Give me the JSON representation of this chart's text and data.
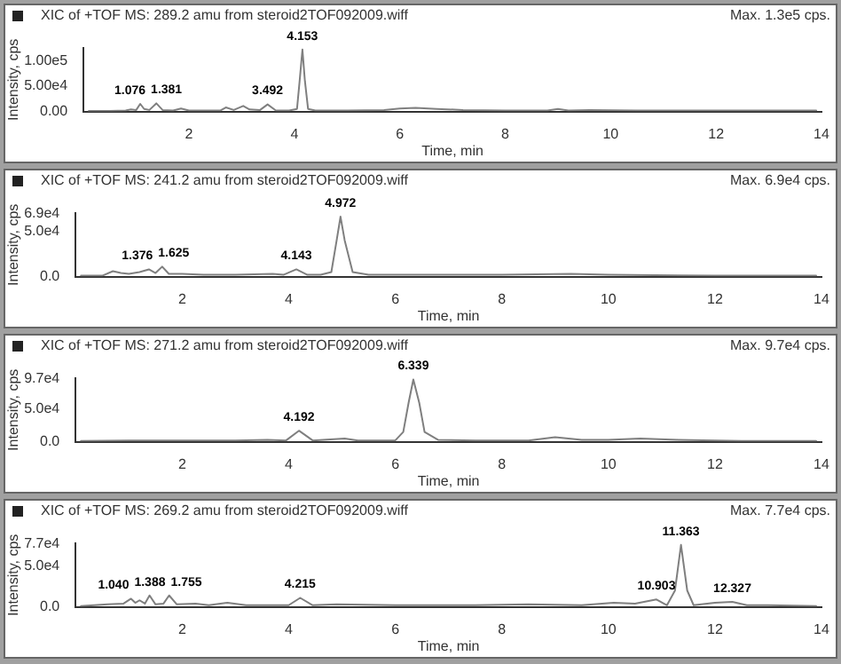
{
  "chart_data": [
    {
      "type": "line",
      "title": "XIC of +TOF MS: 289.2 amu from steroid2TOF092009.wiff",
      "xlabel": "Time, min",
      "ylabel": "Intensity, cps",
      "color": "#7f7f7f",
      "grid": false,
      "legend": false,
      "marker": "none",
      "x": [
        0.1,
        0.5,
        0.8,
        0.9,
        1.0,
        1.076,
        1.15,
        1.25,
        1.381,
        1.5,
        1.7,
        1.85,
        2.0,
        2.3,
        2.6,
        2.7,
        2.85,
        3.03,
        3.15,
        3.35,
        3.492,
        3.65,
        3.9,
        4.05,
        4.1,
        4.153,
        4.2,
        4.26,
        4.4,
        5.0,
        5.7,
        6.0,
        6.3,
        6.7,
        7.2,
        8.0,
        8.8,
        9.0,
        9.2,
        9.6,
        10.5,
        12.0,
        13.0,
        13.9
      ],
      "values": [
        1000,
        1000,
        2000,
        4000,
        3000,
        15000,
        5000,
        3000,
        16000,
        3000,
        2000,
        6000,
        2000,
        2000,
        2000,
        8000,
        3000,
        11000,
        4000,
        3000,
        14000,
        2000,
        2000,
        5000,
        60000,
        122000,
        60000,
        5000,
        2000,
        2000,
        3000,
        6000,
        7000,
        5000,
        3000,
        2000,
        2000,
        5000,
        2000,
        3000,
        2000,
        2000,
        2000,
        2000
      ],
      "xlim": [
        0,
        14
      ],
      "xticks": [
        2,
        4,
        6,
        8,
        10,
        12,
        14
      ],
      "ylim": [
        0,
        125000
      ],
      "yticks": [
        {
          "value": 0,
          "label": "0.00"
        },
        {
          "value": 50000,
          "label": "5.00e4"
        },
        {
          "value": 100000,
          "label": "1.00e5"
        }
      ],
      "annotations": [
        "Max. 1.3e5 cps.",
        {
          "text": "1.076",
          "x": 1.076,
          "y": 15000
        },
        {
          "text": "1.381",
          "x": 1.381,
          "y": 16000
        },
        {
          "text": "3.492",
          "x": 3.492,
          "y": 14000
        },
        {
          "text": "4.153",
          "x": 4.153,
          "y": 122000
        }
      ]
    },
    {
      "type": "line",
      "title": "XIC of +TOF MS: 241.2 amu from steroid2TOF092009.wiff",
      "xlabel": "Time, min",
      "ylabel": "Intensity, cps",
      "color": "#7f7f7f",
      "grid": false,
      "legend": false,
      "marker": "none",
      "x": [
        0.1,
        0.5,
        0.7,
        0.85,
        1.0,
        1.2,
        1.376,
        1.5,
        1.625,
        1.75,
        2.0,
        2.4,
        3.0,
        3.7,
        3.9,
        4.143,
        4.35,
        4.6,
        4.8,
        4.9,
        4.972,
        5.05,
        5.2,
        5.5,
        6.0,
        6.9,
        8.0,
        9.3,
        10.0,
        12.0,
        13.9
      ],
      "values": [
        1000,
        1000,
        6000,
        4000,
        3000,
        5000,
        8000,
        4000,
        11000,
        3000,
        3000,
        2000,
        2000,
        3000,
        2000,
        8000,
        2000,
        2000,
        5000,
        40000,
        66000,
        40000,
        5000,
        2000,
        2000,
        2000,
        2000,
        3000,
        2000,
        1000,
        1000
      ],
      "xlim": [
        0,
        14
      ],
      "xticks": [
        2,
        4,
        6,
        8,
        10,
        12,
        14
      ],
      "ylim": [
        0,
        70000
      ],
      "yticks": [
        {
          "value": 0,
          "label": "0.0"
        },
        {
          "value": 50000,
          "label": "5.0e4"
        },
        {
          "value": 69000,
          "label": "6.9e4"
        }
      ],
      "annotations": [
        "Max. 6.9e4 cps.",
        {
          "text": "1.376",
          "x": 1.376,
          "y": 8000
        },
        {
          "text": "1.625",
          "x": 1.625,
          "y": 11000
        },
        {
          "text": "4.143",
          "x": 4.143,
          "y": 8000
        },
        {
          "text": "4.972",
          "x": 4.972,
          "y": 66000
        }
      ]
    },
    {
      "type": "line",
      "title": "XIC of +TOF MS: 271.2 amu from steroid2TOF092009.wiff",
      "xlabel": "Time, min",
      "ylabel": "Intensity, cps",
      "color": "#7f7f7f",
      "grid": false,
      "legend": false,
      "marker": "none",
      "x": [
        0.1,
        1.0,
        2.0,
        3.0,
        3.6,
        3.95,
        4.192,
        4.45,
        5.05,
        5.3,
        6.0,
        6.15,
        6.25,
        6.339,
        6.45,
        6.55,
        6.8,
        7.5,
        8.5,
        9.0,
        9.5,
        10.0,
        10.6,
        11.3,
        12.0,
        12.5,
        13.9
      ],
      "values": [
        1000,
        2000,
        2000,
        2000,
        3000,
        2000,
        17000,
        2000,
        5000,
        2000,
        2000,
        15000,
        60000,
        96000,
        60000,
        15000,
        3000,
        2000,
        2000,
        7000,
        3000,
        3000,
        5000,
        3000,
        2000,
        1000,
        1000
      ],
      "xlim": [
        0,
        14
      ],
      "xticks": [
        2,
        4,
        6,
        8,
        10,
        12,
        14
      ],
      "ylim": [
        0,
        98000
      ],
      "yticks": [
        {
          "value": 0,
          "label": "0.0"
        },
        {
          "value": 50000,
          "label": "5.0e4"
        },
        {
          "value": 97000,
          "label": "9.7e4"
        }
      ],
      "annotations": [
        "Max. 9.7e4 cps.",
        {
          "text": "4.192",
          "x": 4.192,
          "y": 17000
        },
        {
          "text": "6.339",
          "x": 6.339,
          "y": 96000
        }
      ]
    },
    {
      "type": "line",
      "title": "XIC of +TOF MS: 269.2 amu from steroid2TOF092009.wiff",
      "xlabel": "Time, min",
      "ylabel": "Intensity, cps",
      "color": "#7f7f7f",
      "grid": false,
      "legend": false,
      "marker": "none",
      "x": [
        0.1,
        0.6,
        0.9,
        1.04,
        1.12,
        1.2,
        1.3,
        1.388,
        1.5,
        1.65,
        1.755,
        1.9,
        2.25,
        2.5,
        2.85,
        3.2,
        4.0,
        4.215,
        4.45,
        4.9,
        6.0,
        7.5,
        8.5,
        9.5,
        10.1,
        10.5,
        10.903,
        11.1,
        11.25,
        11.363,
        11.48,
        11.6,
        12.0,
        12.327,
        12.6,
        13.0,
        13.9
      ],
      "values": [
        1000,
        3000,
        4000,
        10000,
        5000,
        8000,
        4000,
        14000,
        3000,
        4000,
        14000,
        3000,
        4000,
        2000,
        5000,
        2000,
        2000,
        11000,
        2000,
        3000,
        2000,
        2000,
        3000,
        2000,
        5000,
        4000,
        9000,
        2000,
        20000,
        76000,
        20000,
        2000,
        5000,
        6000,
        2000,
        2000,
        1000
      ],
      "xlim": [
        0,
        14
      ],
      "xticks": [
        2,
        4,
        6,
        8,
        10,
        12,
        14
      ],
      "ylim": [
        0,
        78000
      ],
      "yticks": [
        {
          "value": 0,
          "label": "0.0"
        },
        {
          "value": 50000,
          "label": "5.0e4"
        },
        {
          "value": 77000,
          "label": "7.7e4"
        }
      ],
      "annotations": [
        "Max. 7.7e4 cps.",
        {
          "text": "1.040",
          "x": 1.04,
          "y": 10000
        },
        {
          "text": "1.388",
          "x": 1.388,
          "y": 14000
        },
        {
          "text": "1.755",
          "x": 1.755,
          "y": 14000
        },
        {
          "text": "4.215",
          "x": 4.215,
          "y": 11000
        },
        {
          "text": "10.903",
          "x": 10.903,
          "y": 9000
        },
        {
          "text": "11.363",
          "x": 11.363,
          "y": 76000
        },
        {
          "text": "12.327",
          "x": 12.327,
          "y": 6000
        }
      ]
    }
  ]
}
